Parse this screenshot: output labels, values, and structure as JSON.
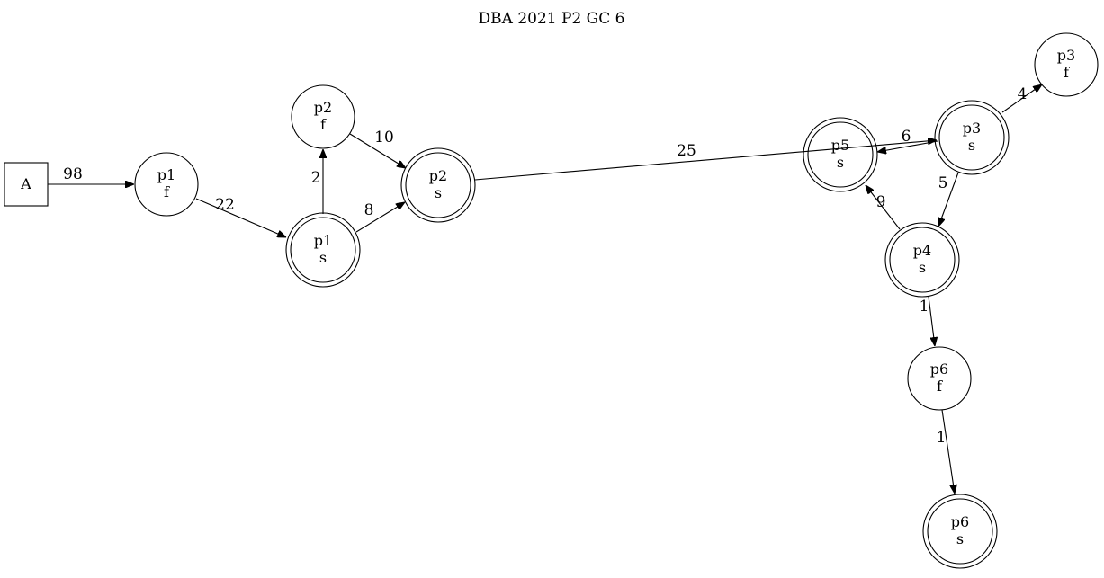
{
  "title": "DBA 2021 P2 GC 6",
  "nodes": {
    "A": {
      "label": [
        "A"
      ]
    },
    "p1f": {
      "label": [
        "p1",
        "f"
      ]
    },
    "p1s": {
      "label": [
        "p1",
        "s"
      ]
    },
    "p2f": {
      "label": [
        "p2",
        "f"
      ]
    },
    "p2s": {
      "label": [
        "p2",
        "s"
      ]
    },
    "p5s": {
      "label": [
        "p5",
        "s"
      ]
    },
    "p3s": {
      "label": [
        "p3",
        "s"
      ]
    },
    "p3f": {
      "label": [
        "p3",
        "f"
      ]
    },
    "p4s": {
      "label": [
        "p4",
        "s"
      ]
    },
    "p6f": {
      "label": [
        "p6",
        "f"
      ]
    },
    "p6s": {
      "label": [
        "p6",
        "s"
      ]
    }
  },
  "edges": [
    {
      "from": "A",
      "to": "p1f",
      "label": "98"
    },
    {
      "from": "p1f",
      "to": "p1s",
      "label": "22"
    },
    {
      "from": "p1s",
      "to": "p2f",
      "label": "2"
    },
    {
      "from": "p1s",
      "to": "p2s",
      "label": "8"
    },
    {
      "from": "p2f",
      "to": "p2s",
      "label": "10"
    },
    {
      "from": "p2s",
      "to": "p3s",
      "label": "25"
    },
    {
      "from": "p3s",
      "to": "p5s",
      "label": "6"
    },
    {
      "from": "p3s",
      "to": "p3f",
      "label": "4"
    },
    {
      "from": "p3s",
      "to": "p4s",
      "label": "5"
    },
    {
      "from": "p4s",
      "to": "p5s",
      "label": "9"
    },
    {
      "from": "p4s",
      "to": "p6f",
      "label": "1"
    },
    {
      "from": "p6f",
      "to": "p6s",
      "label": "1"
    }
  ]
}
